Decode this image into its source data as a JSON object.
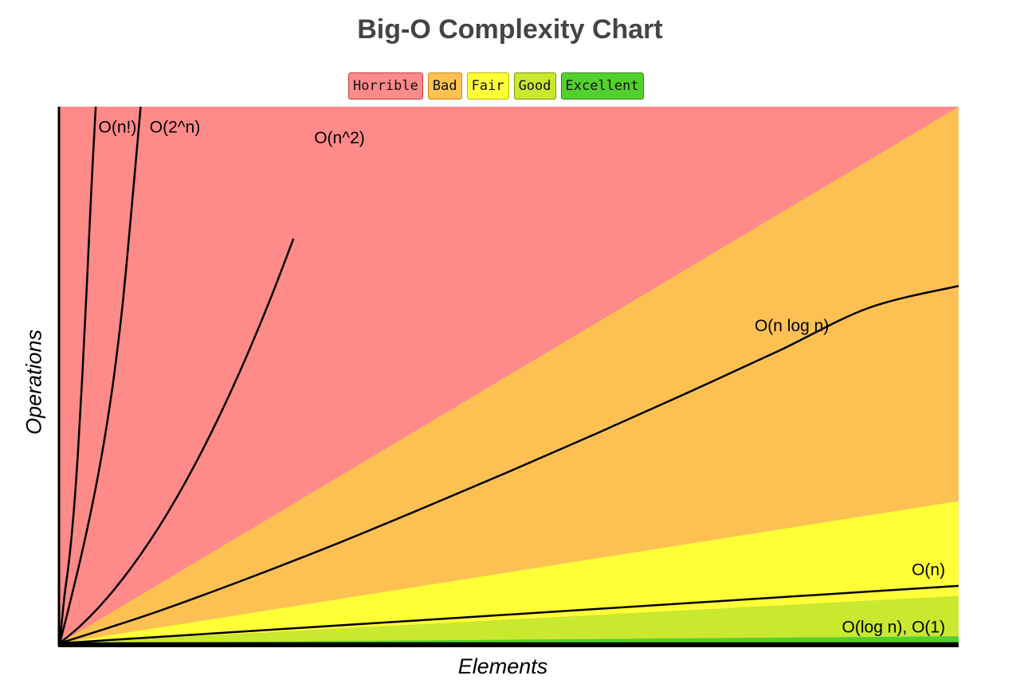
{
  "chart_data": {
    "type": "line",
    "title": "Big-O Complexity Chart",
    "xlabel": "Elements",
    "ylabel": "Operations",
    "xlim": [
      0,
      100
    ],
    "ylim": [
      0,
      100
    ],
    "grid": false,
    "legend_position": "top-center",
    "legend": [
      {
        "label": "Horrible",
        "color": "#fe8a89",
        "border": "#c33c3c"
      },
      {
        "label": "Bad",
        "color": "#fdc153",
        "border": "#c88a10"
      },
      {
        "label": "Fair",
        "color": "#ffff38",
        "border": "#b8b800"
      },
      {
        "label": "Good",
        "color": "#c9e830",
        "border": "#7a9a00"
      },
      {
        "label": "Excellent",
        "color": "#52d12c",
        "border": "#2d8f12"
      }
    ],
    "regions": [
      {
        "name": "Horrible",
        "color": "#fe8a89"
      },
      {
        "name": "Bad",
        "color": "#fdc153",
        "upper_slope": 1.0,
        "lower_slope": 0.265
      },
      {
        "name": "Fair",
        "color": "#ffff38",
        "upper_slope": 0.265,
        "lower_slope": 0.088
      },
      {
        "name": "Good",
        "color": "#c9e830",
        "upper_slope": 0.088,
        "lower_slope": 0.013
      },
      {
        "name": "Excellent",
        "color": "#52d12c",
        "upper_slope": 0.013,
        "lower_slope": 0
      }
    ],
    "series": [
      {
        "name": "O(n!)",
        "x": [
          0,
          0.5,
          1,
          1.5,
          2,
          2.5,
          3,
          3.5,
          4
        ],
        "y": [
          0,
          8.5,
          14.9,
          23.4,
          34.9,
          49.6,
          66.3,
          84.1,
          100
        ]
      },
      {
        "name": "O(2^n)",
        "x": [
          0,
          1,
          2,
          3,
          4,
          5,
          6,
          7,
          8,
          9
        ],
        "y": [
          0,
          6.6,
          13.5,
          20.9,
          29.0,
          38.3,
          49.4,
          63.3,
          81.2,
          100
        ]
      },
      {
        "name": "O(n^2)",
        "x": [
          0,
          2,
          4,
          6,
          8,
          10,
          12,
          14,
          16,
          18,
          20,
          22,
          24,
          26
        ],
        "y": [
          0,
          2.8,
          6.1,
          9.9,
          14.2,
          19.0,
          24.3,
          30.1,
          36.4,
          43.2,
          50.5,
          58.3,
          66.6,
          75.4
        ]
      },
      {
        "name": "O(n log n)",
        "x": [
          0,
          10,
          20,
          30,
          40,
          50,
          60,
          70,
          80,
          90,
          100
        ],
        "y": [
          0,
          5.4,
          11.5,
          18.0,
          24.9,
          32.0,
          39.3,
          46.8,
          54.5,
          62.5,
          66.6
        ]
      },
      {
        "name": "O(n)",
        "x": [
          0,
          100
        ],
        "y": [
          0,
          10.7
        ]
      },
      {
        "name": "O(log n), O(1)",
        "x": [
          0,
          100
        ],
        "y": [
          0,
          0
        ]
      }
    ],
    "annotations": [
      {
        "text": "O(n!)",
        "x": 4.3,
        "y": 96
      },
      {
        "text": "O(2^n)",
        "x": 10.0,
        "y": 96
      },
      {
        "text": "O(n^2)",
        "x": 28.3,
        "y": 94
      },
      {
        "text": "O(n log n)",
        "x": 77.3,
        "y": 59
      },
      {
        "text": "O(n)",
        "x": 98.5,
        "y": 13.5
      },
      {
        "text": "O(log n), O(1)",
        "x": 98.5,
        "y": 2.8
      }
    ]
  }
}
